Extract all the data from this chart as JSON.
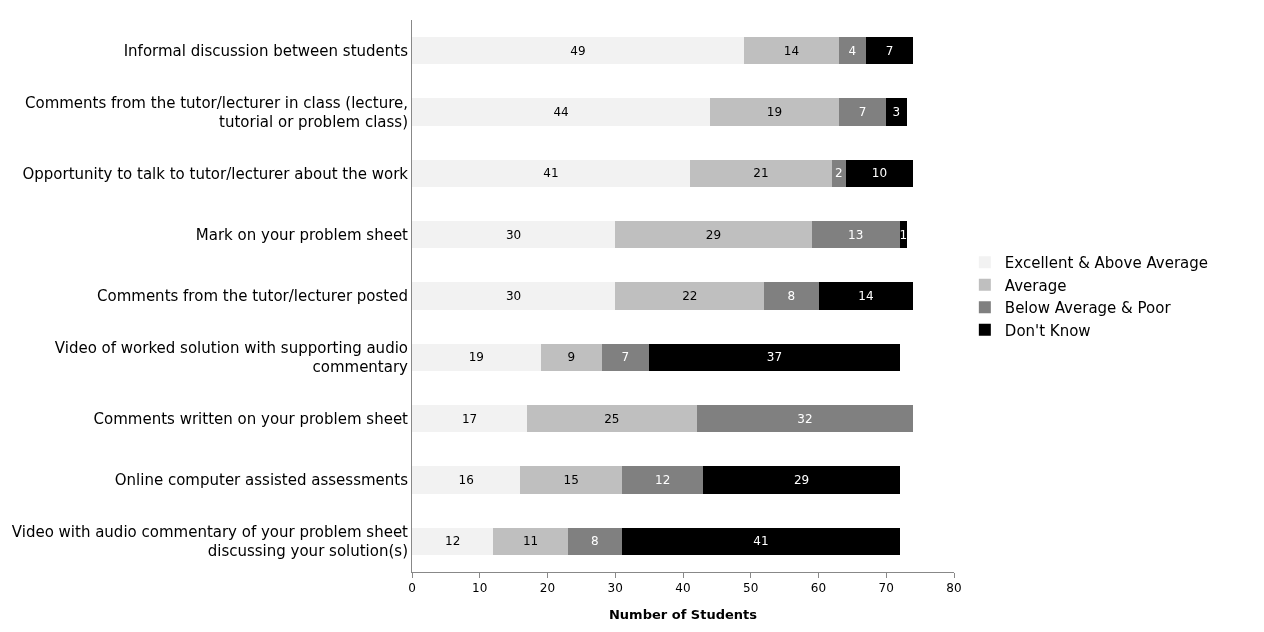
{
  "chart_data": {
    "type": "bar",
    "orientation": "horizontal",
    "stacked": true,
    "xlabel": "Number of Students",
    "categories": [
      "Informal discussion between students",
      "Comments from the tutor/lecturer in class (lecture, tutorial or problem class)",
      "Opportunity to talk to tutor/lecturer about the work",
      "Mark on your problem sheet",
      "Comments from the tutor/lecturer posted",
      "Video of worked solution with supporting audio commentary",
      "Comments written on your problem sheet",
      "Online computer assisted assessments",
      "Video with audio commentary of your problem sheet discussing your solution(s)"
    ],
    "series": [
      {
        "name": "Excellent & Above Average",
        "color": "#f2f2f2",
        "values": [
          49,
          44,
          41,
          30,
          30,
          19,
          17,
          16,
          12
        ]
      },
      {
        "name": "Average",
        "color": "#bfbfbf",
        "values": [
          14,
          19,
          21,
          29,
          22,
          9,
          25,
          15,
          11
        ]
      },
      {
        "name": "Below Average & Poor",
        "color": "#808080",
        "values": [
          4,
          7,
          2,
          13,
          8,
          7,
          32,
          12,
          8
        ]
      },
      {
        "name": "Don't Know",
        "color": "#000000",
        "values": [
          7,
          3,
          10,
          1,
          14,
          37,
          null,
          29,
          41
        ]
      }
    ],
    "xlim": [
      0,
      80
    ],
    "xticks": [
      0,
      10,
      20,
      30,
      40,
      50,
      60,
      70,
      80
    ],
    "data_labels": true,
    "legend": "right"
  }
}
